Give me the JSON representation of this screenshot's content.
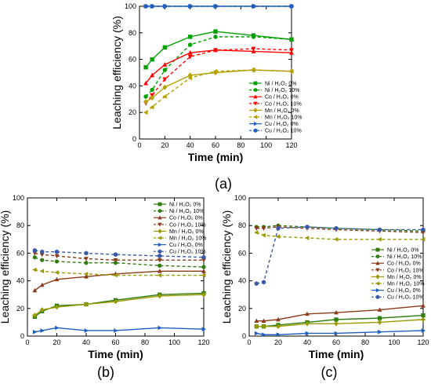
{
  "panel_labels": [
    "(a)",
    "(b)",
    "(c)"
  ],
  "chart_data": [
    {
      "type": "line",
      "panel": "(a)",
      "xlabel": "Time (min)",
      "ylabel": "Leaching efficiency (%)",
      "xlim": [
        0,
        120
      ],
      "ylim": [
        0,
        100
      ],
      "xticks": [
        0,
        20,
        40,
        60,
        80,
        100,
        120
      ],
      "yticks": [
        0,
        20,
        40,
        60,
        80,
        100
      ],
      "legend_position": "right",
      "series": [
        {
          "name": "Ni / H₂O₂ 0%",
          "color": "#00a000",
          "marker": "square",
          "dash": false,
          "x": [
            5,
            10,
            20,
            40,
            60,
            90,
            120
          ],
          "y": [
            54,
            60,
            69,
            77,
            81,
            78,
            75
          ]
        },
        {
          "name": "Ni / H₂O₂ 10%",
          "color": "#00a000",
          "marker": "circle",
          "dash": true,
          "x": [
            5,
            10,
            20,
            40,
            60,
            90,
            120
          ],
          "y": [
            32,
            37,
            52,
            71,
            77,
            77,
            75
          ]
        },
        {
          "name": "Co / H₂O₂ 0%",
          "color": "#ff0000",
          "marker": "triangle-up",
          "dash": false,
          "x": [
            5,
            10,
            20,
            40,
            60,
            90,
            120
          ],
          "y": [
            42,
            48,
            56,
            65,
            67,
            66,
            65
          ]
        },
        {
          "name": "Co / H₂O₂ 10%",
          "color": "#ff0000",
          "marker": "triangle-down",
          "dash": true,
          "x": [
            5,
            10,
            20,
            40,
            60,
            90,
            120
          ],
          "y": [
            27,
            33,
            45,
            62,
            67,
            68,
            67
          ]
        },
        {
          "name": "Mn / H₂O₂ 0%",
          "color": "#b5a000",
          "marker": "diamond",
          "dash": false,
          "x": [
            5,
            10,
            20,
            40,
            60,
            90,
            120
          ],
          "y": [
            28,
            31,
            39,
            48,
            50,
            52,
            51
          ]
        },
        {
          "name": "Mn / H₂O₂ 10%",
          "color": "#b5a000",
          "marker": "triangle-left",
          "dash": true,
          "x": [
            5,
            10,
            20,
            40,
            60,
            90,
            120
          ],
          "y": [
            20,
            24,
            32,
            46,
            51,
            52,
            51
          ]
        },
        {
          "name": "Cu / H₂O₂ 0%",
          "color": "#1f5fbf",
          "marker": "triangle-right",
          "dash": false,
          "x": [
            5,
            10,
            20,
            40,
            60,
            90,
            120
          ],
          "y": [
            100,
            100,
            100,
            100,
            100,
            100,
            100
          ]
        },
        {
          "name": "Cu / H₂O₂ 10%",
          "color": "#1f5fbf",
          "marker": "hexagon",
          "dash": true,
          "x": [
            5,
            10,
            20,
            40,
            60,
            90,
            120
          ],
          "y": [
            100,
            100,
            100,
            100,
            100,
            100,
            100
          ]
        }
      ]
    },
    {
      "type": "line",
      "panel": "(b)",
      "xlabel": "Time (min)",
      "ylabel": "Leaching efficiency (%)",
      "xlim": [
        0,
        120
      ],
      "ylim": [
        0,
        100
      ],
      "xticks": [
        0,
        20,
        40,
        60,
        80,
        100,
        120
      ],
      "yticks": [
        0,
        20,
        40,
        60,
        80,
        100
      ],
      "legend_position": "top-right",
      "series": [
        {
          "name": "Ni / H₂O₂ 0%",
          "color": "#2e7d0e",
          "marker": "square",
          "dash": false,
          "x": [
            5,
            10,
            20,
            40,
            60,
            90,
            120
          ],
          "y": [
            14,
            18,
            22,
            23,
            26,
            30,
            31
          ]
        },
        {
          "name": "Ni / H₂O₂ 10%",
          "color": "#2e7d0e",
          "marker": "circle",
          "dash": true,
          "x": [
            5,
            10,
            20,
            40,
            60,
            90,
            120
          ],
          "y": [
            57,
            55,
            54,
            53,
            53,
            51,
            50
          ]
        },
        {
          "name": "Co / H₂O₂ 0%",
          "color": "#8b3a1a",
          "marker": "triangle-up",
          "dash": false,
          "x": [
            5,
            10,
            20,
            40,
            60,
            90,
            120
          ],
          "y": [
            33,
            37,
            41,
            43,
            45,
            47,
            47
          ]
        },
        {
          "name": "Co / H₂O₂ 10%",
          "color": "#8b3a1a",
          "marker": "triangle-down",
          "dash": true,
          "x": [
            5,
            10,
            20,
            40,
            60,
            90,
            120
          ],
          "y": [
            60,
            59,
            58,
            56,
            55,
            55,
            55
          ]
        },
        {
          "name": "Mn / H₂O₂ 0%",
          "color": "#9a9a00",
          "marker": "diamond",
          "dash": false,
          "x": [
            5,
            10,
            20,
            40,
            60,
            90,
            120
          ],
          "y": [
            15,
            19,
            21,
            23,
            25,
            29,
            30
          ]
        },
        {
          "name": "Mn / H₂O₂ 10%",
          "color": "#9a9a00",
          "marker": "triangle-left",
          "dash": true,
          "x": [
            5,
            10,
            20,
            40,
            60,
            90,
            120
          ],
          "y": [
            48,
            47,
            46,
            45,
            44,
            44,
            44
          ]
        },
        {
          "name": "Cu / H₂O₂ 0%",
          "color": "#1f5fbf",
          "marker": "triangle-right",
          "dash": false,
          "x": [
            5,
            10,
            20,
            40,
            60,
            90,
            120
          ],
          "y": [
            3,
            4,
            6,
            4,
            4,
            6,
            5
          ]
        },
        {
          "name": "Cu / H₂O₂ 10%",
          "color": "#3a5aa8",
          "marker": "hexagon",
          "dash": true,
          "x": [
            5,
            10,
            20,
            40,
            60,
            90,
            120
          ],
          "y": [
            62,
            61,
            61,
            60,
            59,
            58,
            57
          ]
        }
      ]
    },
    {
      "type": "line",
      "panel": "(c)",
      "xlabel": "Time (min)",
      "ylabel": "Leaching efficiency (%)",
      "xlim": [
        0,
        120
      ],
      "ylim": [
        0,
        100
      ],
      "xticks": [
        0,
        20,
        40,
        60,
        80,
        100,
        120
      ],
      "yticks": [
        0,
        20,
        40,
        60,
        80,
        100
      ],
      "legend_position": "right",
      "series": [
        {
          "name": "Ni / H₂O₂ 0%",
          "color": "#2e7d0e",
          "marker": "square",
          "dash": false,
          "x": [
            5,
            10,
            20,
            40,
            60,
            90,
            120
          ],
          "y": [
            7,
            7,
            8,
            10,
            12,
            13,
            15
          ]
        },
        {
          "name": "Ni / H₂O₂ 10%",
          "color": "#2e7d0e",
          "marker": "circle",
          "dash": true,
          "x": [
            5,
            10,
            20,
            40,
            60,
            90,
            120
          ],
          "y": [
            79,
            79,
            80,
            79,
            78,
            77,
            76
          ]
        },
        {
          "name": "Co / H₂O₂ 0%",
          "color": "#8b3a1a",
          "marker": "triangle-up",
          "dash": false,
          "x": [
            5,
            10,
            20,
            40,
            60,
            90,
            120
          ],
          "y": [
            11,
            11,
            12,
            16,
            17,
            19,
            22
          ]
        },
        {
          "name": "Co / H₂O₂ 10%",
          "color": "#8b3a1a",
          "marker": "triangle-down",
          "dash": true,
          "x": [
            5,
            10,
            20,
            40,
            60,
            90,
            120
          ],
          "y": [
            78,
            78,
            79,
            78,
            77,
            76,
            75
          ]
        },
        {
          "name": "Mn / H₂O₂ 0%",
          "color": "#9a9a00",
          "marker": "diamond",
          "dash": false,
          "x": [
            5,
            10,
            20,
            40,
            60,
            90,
            120
          ],
          "y": [
            7,
            7,
            7,
            9,
            9,
            10,
            12
          ]
        },
        {
          "name": "Mn / H₂O₂ 10%",
          "color": "#9a9a00",
          "marker": "triangle-left",
          "dash": true,
          "x": [
            5,
            10,
            20,
            40,
            60,
            90,
            120
          ],
          "y": [
            75,
            73,
            72,
            71,
            70,
            70,
            70
          ]
        },
        {
          "name": "Cu / H₂O₂ 0%",
          "color": "#1f5fbf",
          "marker": "triangle-right",
          "dash": false,
          "x": [
            5,
            10,
            20,
            40,
            60,
            90,
            120
          ],
          "y": [
            2,
            1,
            1,
            2,
            2,
            3,
            4
          ]
        },
        {
          "name": "Cu / H₂O₂ 10%",
          "color": "#3a5aa8",
          "marker": "hexagon",
          "dash": true,
          "x": [
            5,
            10,
            20,
            40,
            60,
            90,
            120
          ],
          "y": [
            38,
            39,
            78,
            79,
            78,
            77,
            77
          ]
        }
      ]
    }
  ]
}
